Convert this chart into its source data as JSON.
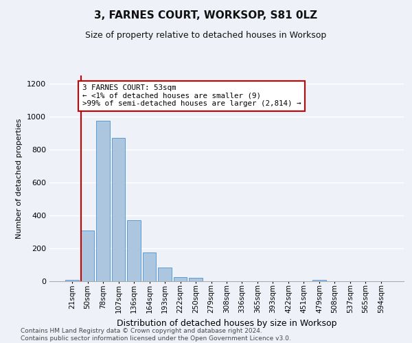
{
  "title": "3, FARNES COURT, WORKSOP, S81 0LZ",
  "subtitle": "Size of property relative to detached houses in Worksop",
  "xlabel": "Distribution of detached houses by size in Worksop",
  "ylabel": "Number of detached properties",
  "bar_color": "#adc6e0",
  "bar_edge_color": "#5b9bd5",
  "bins": [
    "21sqm",
    "50sqm",
    "78sqm",
    "107sqm",
    "136sqm",
    "164sqm",
    "193sqm",
    "222sqm",
    "250sqm",
    "279sqm",
    "308sqm",
    "336sqm",
    "365sqm",
    "393sqm",
    "422sqm",
    "451sqm",
    "479sqm",
    "508sqm",
    "537sqm",
    "565sqm",
    "594sqm"
  ],
  "values": [
    10,
    310,
    975,
    870,
    370,
    175,
    85,
    25,
    20,
    0,
    0,
    0,
    0,
    0,
    0,
    0,
    10,
    0,
    0,
    0,
    0
  ],
  "ylim": [
    0,
    1250
  ],
  "yticks": [
    0,
    200,
    400,
    600,
    800,
    1000,
    1200
  ],
  "annotation_title": "3 FARNES COURT: 53sqm",
  "annotation_line1": "← <1% of detached houses are smaller (9)",
  "annotation_line2": ">99% of semi-detached houses are larger (2,814) →",
  "annotation_box_color": "#ffffff",
  "annotation_box_edge": "#cc0000",
  "vline_color": "#cc0000",
  "vline_x": 0.575,
  "footer1": "Contains HM Land Registry data © Crown copyright and database right 2024.",
  "footer2": "Contains public sector information licensed under the Open Government Licence v3.0.",
  "background_color": "#eef2f8",
  "grid_color": "#ffffff",
  "title_fontsize": 11,
  "subtitle_fontsize": 9,
  "ylabel_fontsize": 8,
  "xlabel_fontsize": 9,
  "tick_fontsize": 7.5,
  "ytick_fontsize": 8,
  "annotation_fontsize": 7.8,
  "footer_fontsize": 6.5
}
